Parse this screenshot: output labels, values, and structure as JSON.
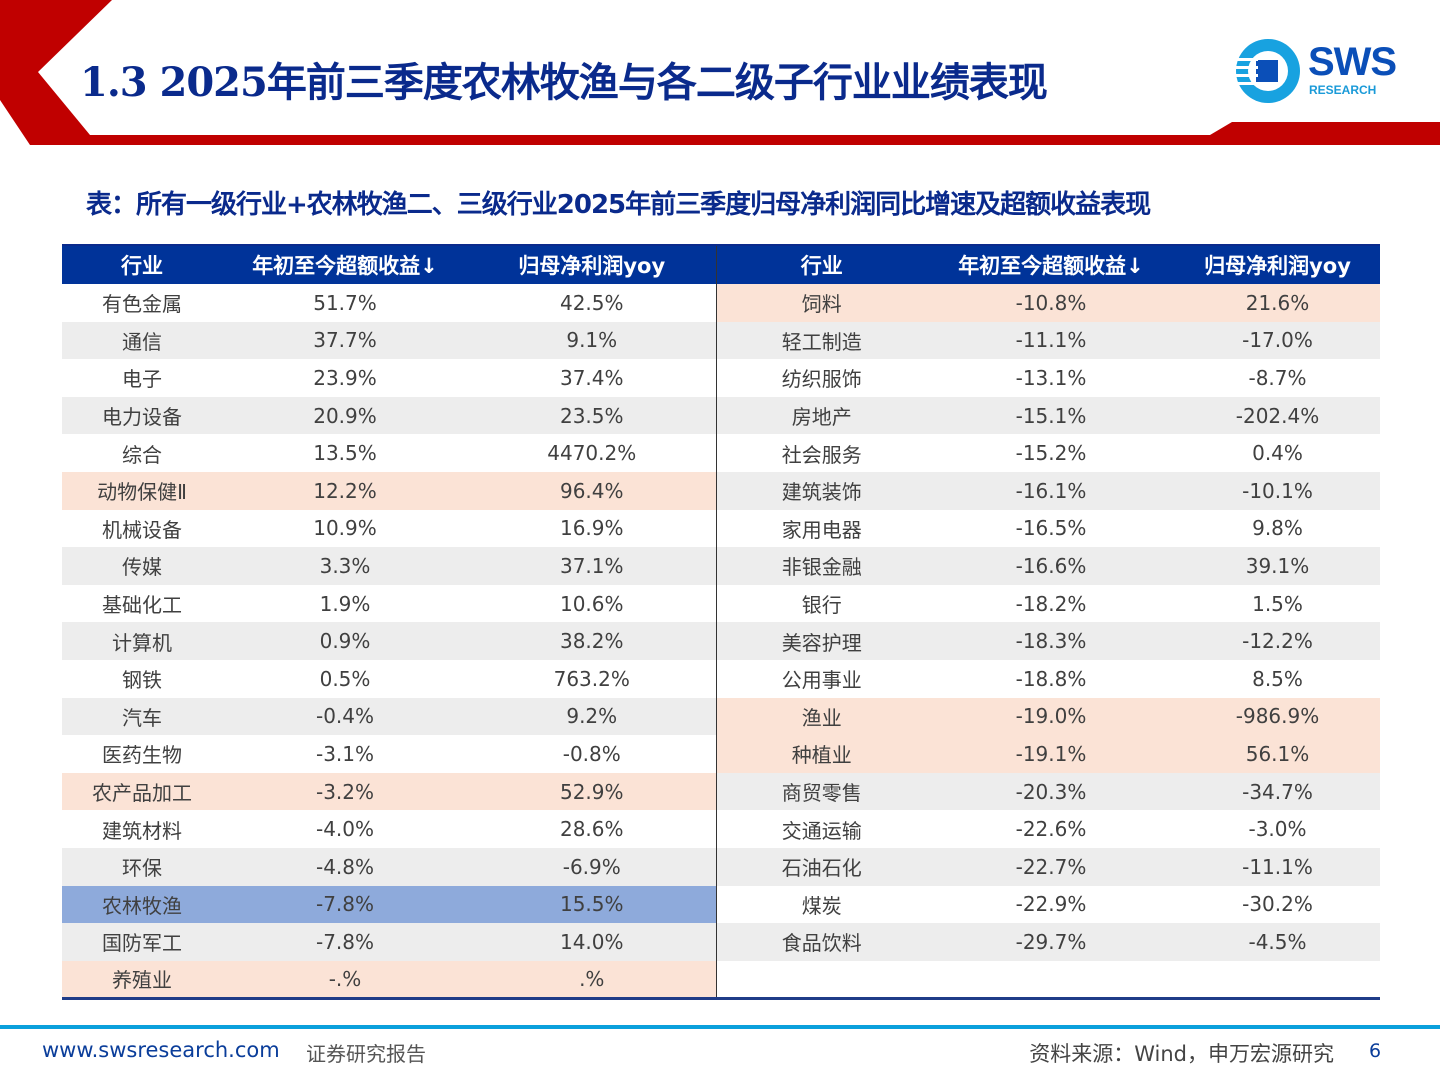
{
  "header": {
    "title": "1.3 2025年前三季度农林牧渔与各二级子行业业绩表现",
    "logo_text": "SWS",
    "logo_sub": "RESEARCH"
  },
  "subtitle": "表：所有一级行业+农林牧渔二、三级行业2025年前三季度归母净利润同比增速及超额收益表现",
  "table": {
    "headers": [
      "行业",
      "年初至今超额收益↓",
      "归母净利润yoy",
      "行业",
      "年初至今超额收益↓",
      "归母净利润yoy"
    ],
    "left": [
      [
        "有色金属",
        "51.7%",
        "42.5%",
        "w"
      ],
      [
        "通信",
        "37.7%",
        "9.1%",
        "g"
      ],
      [
        "电子",
        "23.9%",
        "37.4%",
        "w"
      ],
      [
        "电力设备",
        "20.9%",
        "23.5%",
        "g"
      ],
      [
        "综合",
        "13.5%",
        "4470.2%",
        "w"
      ],
      [
        "动物保健Ⅱ",
        "12.2%",
        "96.4%",
        "p"
      ],
      [
        "机械设备",
        "10.9%",
        "16.9%",
        "w"
      ],
      [
        "传媒",
        "3.3%",
        "37.1%",
        "g"
      ],
      [
        "基础化工",
        "1.9%",
        "10.6%",
        "w"
      ],
      [
        "计算机",
        "0.9%",
        "38.2%",
        "g"
      ],
      [
        "钢铁",
        "0.5%",
        "763.2%",
        "w"
      ],
      [
        "汽车",
        "-0.4%",
        "9.2%",
        "g"
      ],
      [
        "医药生物",
        "-3.1%",
        "-0.8%",
        "w"
      ],
      [
        "农产品加工",
        "-3.2%",
        "52.9%",
        "p"
      ],
      [
        "建筑材料",
        "-4.0%",
        "28.6%",
        "w"
      ],
      [
        "环保",
        "-4.8%",
        "-6.9%",
        "g"
      ],
      [
        "农林牧渔",
        "-7.8%",
        "15.5%",
        "b"
      ],
      [
        "国防军工",
        "-7.8%",
        "14.0%",
        "g"
      ],
      [
        "养殖业",
        "-.%",
        ".%",
        "p"
      ]
    ],
    "right": [
      [
        "饲料",
        "-10.8%",
        "21.6%",
        "p"
      ],
      [
        "轻工制造",
        "-11.1%",
        "-17.0%",
        "g"
      ],
      [
        "纺织服饰",
        "-13.1%",
        "-8.7%",
        "w"
      ],
      [
        "房地产",
        "-15.1%",
        "-202.4%",
        "g"
      ],
      [
        "社会服务",
        "-15.2%",
        "0.4%",
        "w"
      ],
      [
        "建筑装饰",
        "-16.1%",
        "-10.1%",
        "g"
      ],
      [
        "家用电器",
        "-16.5%",
        "9.8%",
        "w"
      ],
      [
        "非银金融",
        "-16.6%",
        "39.1%",
        "g"
      ],
      [
        "银行",
        "-18.2%",
        "1.5%",
        "w"
      ],
      [
        "美容护理",
        "-18.3%",
        "-12.2%",
        "g"
      ],
      [
        "公用事业",
        "-18.8%",
        "8.5%",
        "w"
      ],
      [
        "渔业",
        "-19.0%",
        "-986.9%",
        "p"
      ],
      [
        "种植业",
        "-19.1%",
        "56.1%",
        "p"
      ],
      [
        "商贸零售",
        "-20.3%",
        "-34.7%",
        "g"
      ],
      [
        "交通运输",
        "-22.6%",
        "-3.0%",
        "w"
      ],
      [
        "石油石化",
        "-22.7%",
        "-11.1%",
        "g"
      ],
      [
        "煤炭",
        "-22.9%",
        "-30.2%",
        "w"
      ],
      [
        "食品饮料",
        "-29.7%",
        "-4.5%",
        "g"
      ],
      [
        "",
        "",
        "",
        "w"
      ]
    ]
  },
  "colors": {
    "brand_red": "#c00000",
    "title_blue": "#0a2a8c",
    "header_blue": "#003399",
    "highlight_peach": "#fbe3d6",
    "highlight_blue": "#8eaadb"
  },
  "footer": {
    "url": "www.swsresearch.com",
    "report": "证券研究报告",
    "source": "资料来源：Wind，申万宏源研究",
    "page": "6"
  }
}
